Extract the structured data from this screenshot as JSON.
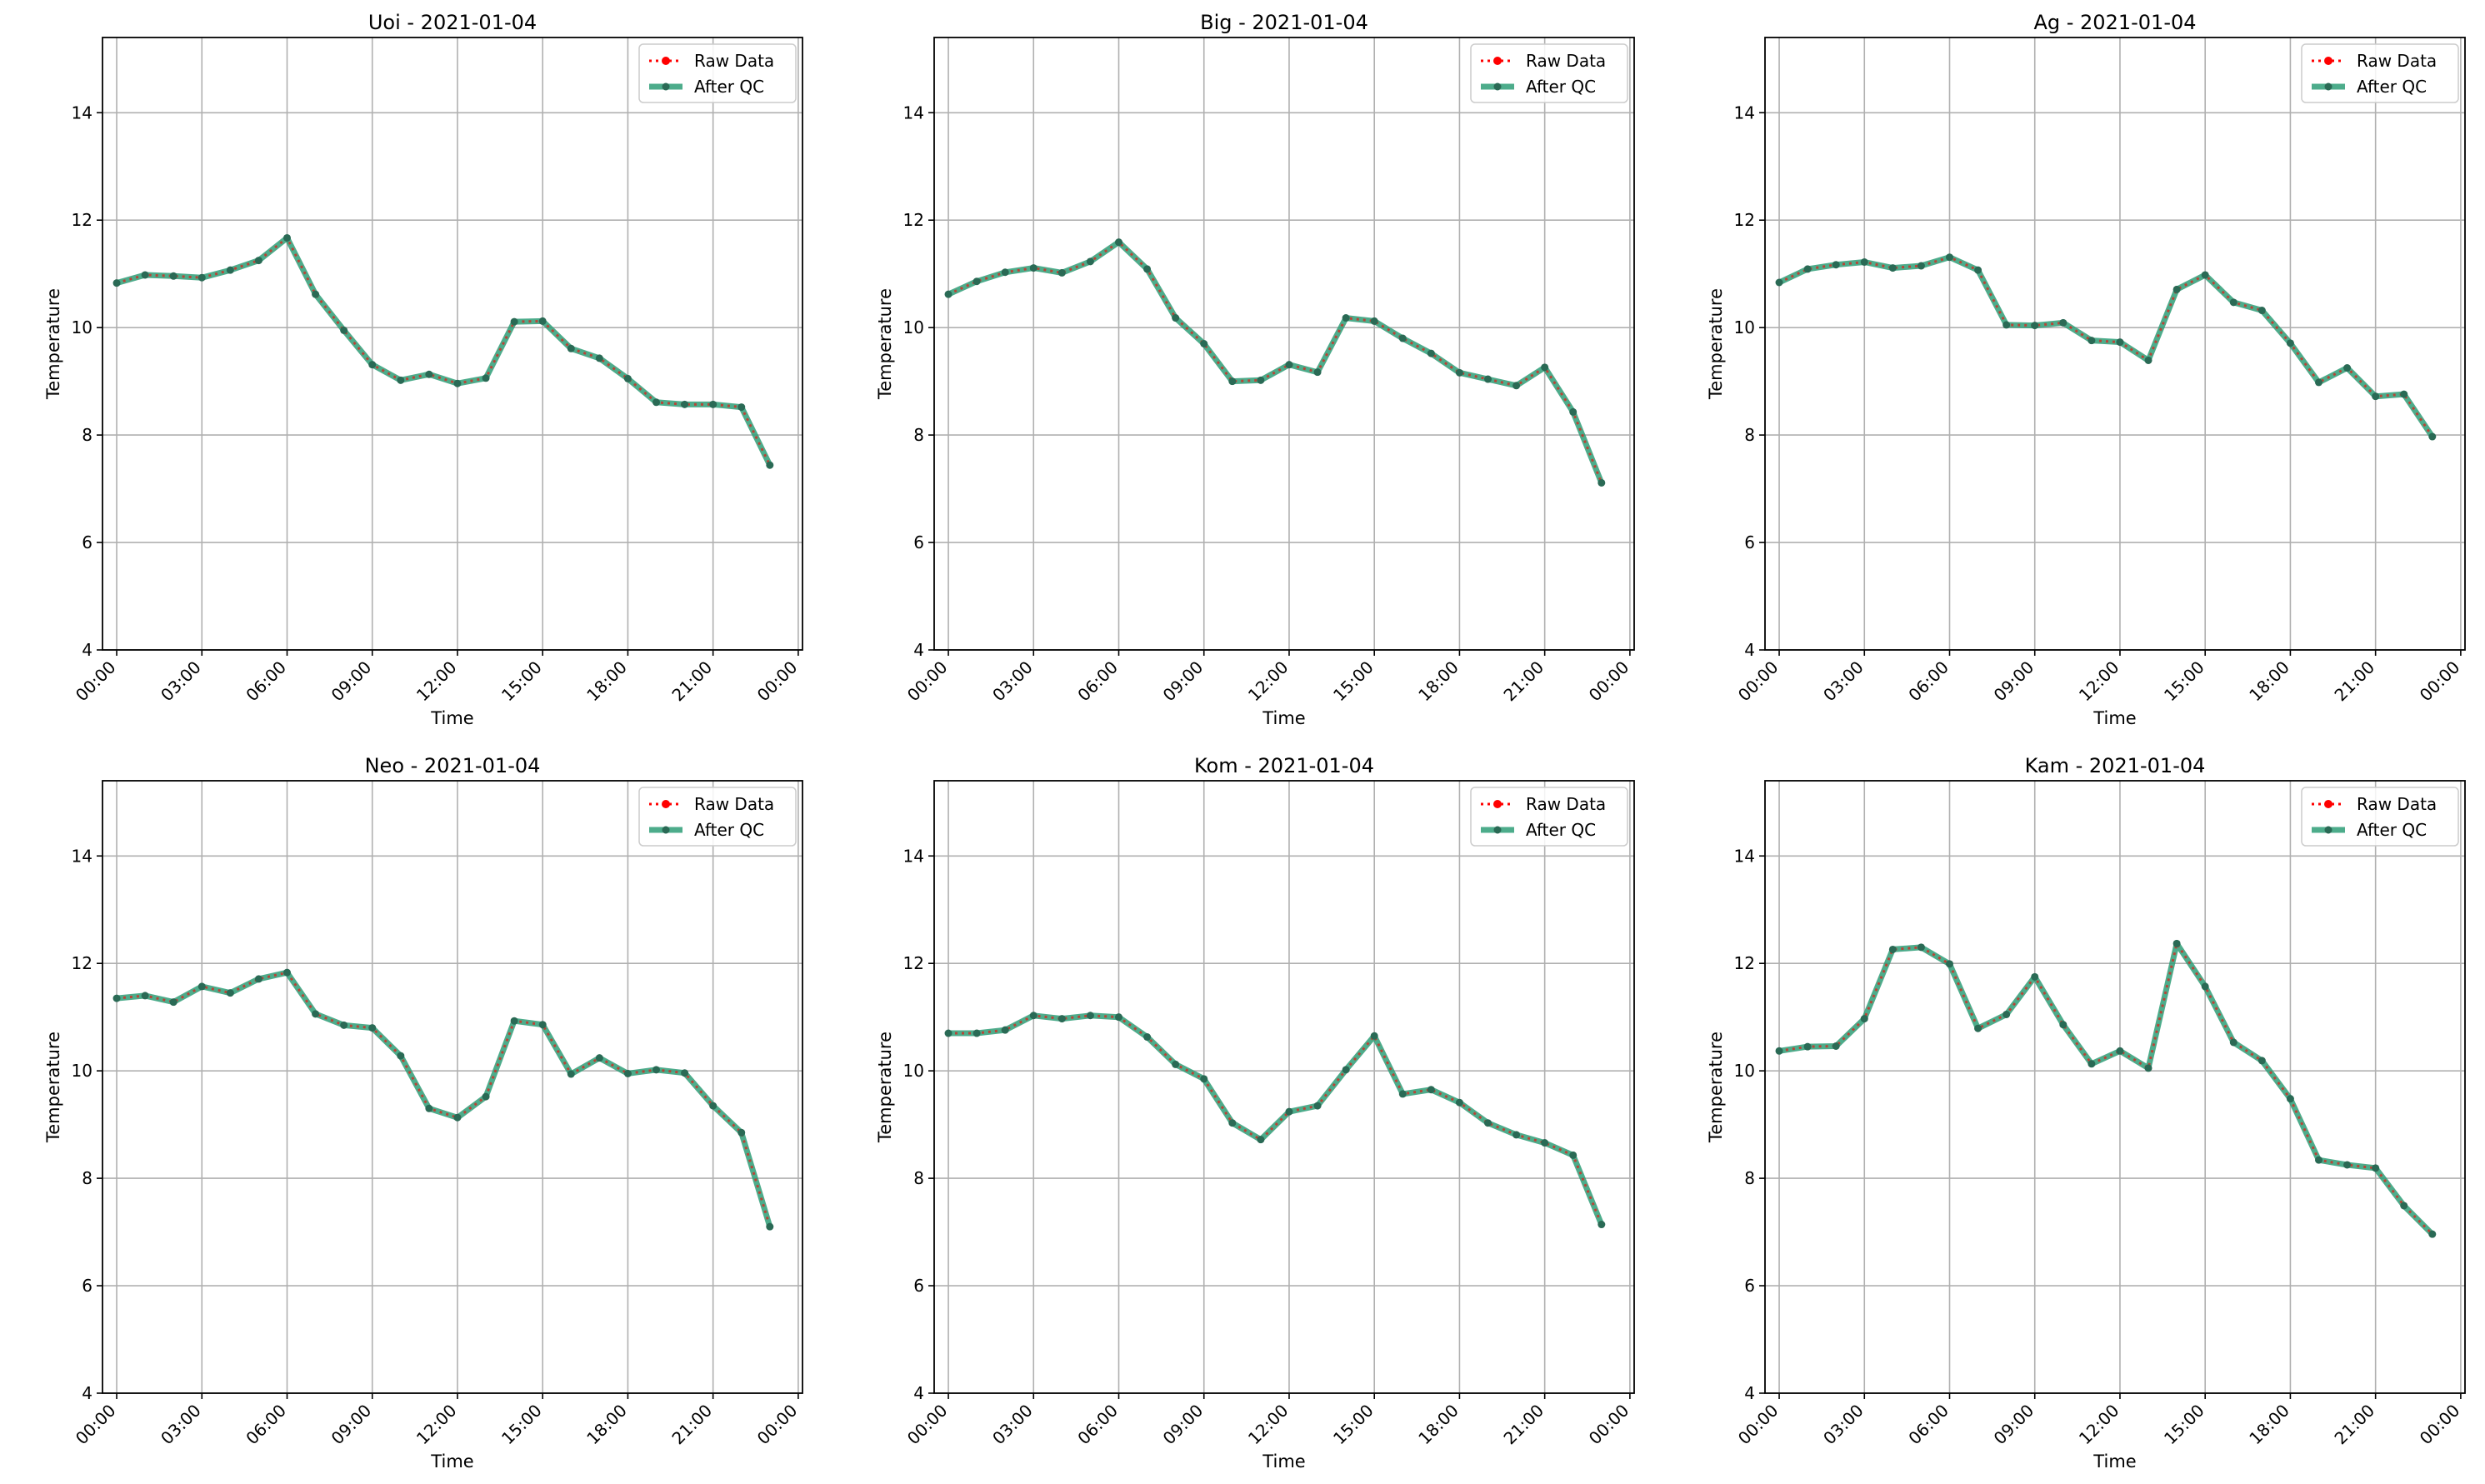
{
  "figure": {
    "subplots": [
      {
        "title": "Uoi - 2021-01-04"
      },
      {
        "title": "Big - 2021-01-04"
      },
      {
        "title": "Ag - 2021-01-04"
      },
      {
        "title": "Neo - 2021-01-04"
      },
      {
        "title": "Kom - 2021-01-04"
      },
      {
        "title": "Kam - 2021-01-04"
      }
    ]
  },
  "chart_data": [
    {
      "type": "line",
      "title": "Uoi - 2021-01-04",
      "xlabel": "Time",
      "ylabel": "Temperature",
      "x": [
        "00:00",
        "01:00",
        "02:00",
        "03:00",
        "04:00",
        "05:00",
        "06:00",
        "07:00",
        "08:00",
        "09:00",
        "10:00",
        "11:00",
        "12:00",
        "13:00",
        "14:00",
        "15:00",
        "16:00",
        "17:00",
        "18:00",
        "19:00",
        "20:00",
        "21:00",
        "22:00",
        "23:00"
      ],
      "x_ticks": [
        "00:00",
        "03:00",
        "06:00",
        "09:00",
        "12:00",
        "15:00",
        "18:00",
        "21:00",
        "00:00"
      ],
      "y_ticks": [
        4,
        6,
        8,
        10,
        12,
        14
      ],
      "ylim": [
        4,
        15.4
      ],
      "grid": true,
      "legend_position": "top-right",
      "series": [
        {
          "name": "Raw Data",
          "color": "#ff0000",
          "values": [
            10.83,
            10.98,
            10.96,
            10.93,
            11.07,
            11.25,
            11.67,
            10.62,
            9.95,
            9.31,
            9.02,
            9.13,
            8.96,
            9.06,
            10.11,
            10.12,
            9.61,
            9.43,
            9.05,
            8.61,
            8.57,
            8.57,
            8.52,
            7.44
          ]
        },
        {
          "name": "After QC",
          "color": "#2e9e77",
          "values": [
            10.83,
            10.98,
            10.96,
            10.93,
            11.07,
            11.25,
            11.67,
            10.62,
            9.95,
            9.31,
            9.02,
            9.13,
            8.96,
            9.06,
            10.11,
            10.12,
            9.61,
            9.43,
            9.05,
            8.61,
            8.57,
            8.57,
            8.52,
            7.44
          ]
        }
      ]
    },
    {
      "type": "line",
      "title": "Big - 2021-01-04",
      "xlabel": "Time",
      "ylabel": "Temperature",
      "x": [
        "00:00",
        "01:00",
        "02:00",
        "03:00",
        "04:00",
        "05:00",
        "06:00",
        "07:00",
        "08:00",
        "09:00",
        "10:00",
        "11:00",
        "12:00",
        "13:00",
        "14:00",
        "15:00",
        "16:00",
        "17:00",
        "18:00",
        "19:00",
        "20:00",
        "21:00",
        "22:00",
        "23:00"
      ],
      "x_ticks": [
        "00:00",
        "03:00",
        "06:00",
        "09:00",
        "12:00",
        "15:00",
        "18:00",
        "21:00",
        "00:00"
      ],
      "y_ticks": [
        4,
        6,
        8,
        10,
        12,
        14
      ],
      "ylim": [
        4,
        15.4
      ],
      "grid": true,
      "legend_position": "top-right",
      "series": [
        {
          "name": "Raw Data",
          "color": "#ff0000",
          "values": [
            10.62,
            10.86,
            11.03,
            11.11,
            11.02,
            11.23,
            11.59,
            11.09,
            10.18,
            9.7,
            9.0,
            9.02,
            9.31,
            9.17,
            10.18,
            10.12,
            9.8,
            9.52,
            9.16,
            9.04,
            8.92,
            9.26,
            8.43,
            7.11
          ]
        },
        {
          "name": "After QC",
          "color": "#2e9e77",
          "values": [
            10.62,
            10.86,
            11.03,
            11.11,
            11.02,
            11.23,
            11.59,
            11.09,
            10.18,
            9.7,
            9.0,
            9.02,
            9.31,
            9.17,
            10.18,
            10.12,
            9.8,
            9.52,
            9.16,
            9.04,
            8.92,
            9.26,
            8.43,
            7.11
          ]
        }
      ]
    },
    {
      "type": "line",
      "title": "Ag - 2021-01-04",
      "xlabel": "Time",
      "ylabel": "Temperature",
      "x": [
        "00:00",
        "01:00",
        "02:00",
        "03:00",
        "04:00",
        "05:00",
        "06:00",
        "07:00",
        "08:00",
        "09:00",
        "10:00",
        "11:00",
        "12:00",
        "13:00",
        "14:00",
        "15:00",
        "16:00",
        "17:00",
        "18:00",
        "19:00",
        "20:00",
        "21:00",
        "22:00",
        "23:00"
      ],
      "x_ticks": [
        "00:00",
        "03:00",
        "06:00",
        "09:00",
        "12:00",
        "15:00",
        "18:00",
        "21:00",
        "00:00"
      ],
      "y_ticks": [
        4,
        6,
        8,
        10,
        12,
        14
      ],
      "ylim": [
        4,
        15.4
      ],
      "grid": true,
      "legend_position": "top-right",
      "series": [
        {
          "name": "Raw Data",
          "color": "#ff0000",
          "values": [
            10.84,
            11.09,
            11.17,
            11.22,
            11.11,
            11.15,
            11.31,
            11.07,
            10.05,
            10.04,
            10.09,
            9.76,
            9.73,
            9.39,
            10.71,
            10.98,
            10.47,
            10.32,
            9.71,
            8.98,
            9.25,
            8.72,
            8.76,
            7.97
          ]
        },
        {
          "name": "After QC",
          "color": "#2e9e77",
          "values": [
            10.84,
            11.09,
            11.17,
            11.22,
            11.11,
            11.15,
            11.31,
            11.07,
            10.05,
            10.04,
            10.09,
            9.76,
            9.73,
            9.39,
            10.71,
            10.98,
            10.47,
            10.32,
            9.71,
            8.98,
            9.25,
            8.72,
            8.76,
            7.97
          ]
        }
      ]
    },
    {
      "type": "line",
      "title": "Neo - 2021-01-04",
      "xlabel": "Time",
      "ylabel": "Temperature",
      "x": [
        "00:00",
        "01:00",
        "02:00",
        "03:00",
        "04:00",
        "05:00",
        "06:00",
        "07:00",
        "08:00",
        "09:00",
        "10:00",
        "11:00",
        "12:00",
        "13:00",
        "14:00",
        "15:00",
        "16:00",
        "17:00",
        "18:00",
        "19:00",
        "20:00",
        "21:00",
        "22:00",
        "23:00"
      ],
      "x_ticks": [
        "00:00",
        "03:00",
        "06:00",
        "09:00",
        "12:00",
        "15:00",
        "18:00",
        "21:00",
        "00:00"
      ],
      "y_ticks": [
        4,
        6,
        8,
        10,
        12,
        14
      ],
      "ylim": [
        4,
        15.4
      ],
      "grid": true,
      "legend_position": "top-right",
      "series": [
        {
          "name": "Raw Data",
          "color": "#ff0000",
          "values": [
            11.35,
            11.4,
            11.28,
            11.57,
            11.45,
            11.71,
            11.83,
            11.06,
            10.85,
            10.8,
            10.28,
            9.3,
            9.13,
            9.52,
            10.93,
            10.86,
            9.94,
            10.24,
            9.95,
            10.02,
            9.96,
            9.35,
            8.85,
            7.1
          ]
        },
        {
          "name": "After QC",
          "color": "#2e9e77",
          "values": [
            11.35,
            11.4,
            11.28,
            11.57,
            11.45,
            11.71,
            11.83,
            11.06,
            10.85,
            10.8,
            10.28,
            9.3,
            9.13,
            9.52,
            10.93,
            10.86,
            9.94,
            10.24,
            9.95,
            10.02,
            9.96,
            9.35,
            8.85,
            7.1
          ]
        }
      ]
    },
    {
      "type": "line",
      "title": "Kom - 2021-01-04",
      "xlabel": "Time",
      "ylabel": "Temperature",
      "x": [
        "00:00",
        "01:00",
        "02:00",
        "03:00",
        "04:00",
        "05:00",
        "06:00",
        "07:00",
        "08:00",
        "09:00",
        "10:00",
        "11:00",
        "12:00",
        "13:00",
        "14:00",
        "15:00",
        "16:00",
        "17:00",
        "18:00",
        "19:00",
        "20:00",
        "21:00",
        "22:00",
        "23:00"
      ],
      "x_ticks": [
        "00:00",
        "03:00",
        "06:00",
        "09:00",
        "12:00",
        "15:00",
        "18:00",
        "21:00",
        "00:00"
      ],
      "y_ticks": [
        4,
        6,
        8,
        10,
        12,
        14
      ],
      "ylim": [
        4,
        15.4
      ],
      "grid": true,
      "legend_position": "top-right",
      "series": [
        {
          "name": "Raw Data",
          "color": "#ff0000",
          "values": [
            10.7,
            10.7,
            10.76,
            11.03,
            10.97,
            11.03,
            11.0,
            10.63,
            10.12,
            9.85,
            9.03,
            8.72,
            9.24,
            9.35,
            10.02,
            10.65,
            9.57,
            9.65,
            9.41,
            9.03,
            8.81,
            8.66,
            8.43,
            7.14
          ]
        },
        {
          "name": "After QC",
          "color": "#2e9e77",
          "values": [
            10.7,
            10.7,
            10.76,
            11.03,
            10.97,
            11.03,
            11.0,
            10.63,
            10.12,
            9.85,
            9.03,
            8.72,
            9.24,
            9.35,
            10.02,
            10.65,
            9.57,
            9.65,
            9.41,
            9.03,
            8.81,
            8.66,
            8.43,
            7.14
          ]
        }
      ]
    },
    {
      "type": "line",
      "title": "Kam - 2021-01-04",
      "xlabel": "Time",
      "ylabel": "Temperature",
      "x": [
        "00:00",
        "01:00",
        "02:00",
        "03:00",
        "04:00",
        "05:00",
        "06:00",
        "07:00",
        "08:00",
        "09:00",
        "10:00",
        "11:00",
        "12:00",
        "13:00",
        "14:00",
        "15:00",
        "16:00",
        "17:00",
        "18:00",
        "19:00",
        "20:00",
        "21:00",
        "22:00",
        "23:00"
      ],
      "x_ticks": [
        "00:00",
        "03:00",
        "06:00",
        "09:00",
        "12:00",
        "15:00",
        "18:00",
        "21:00",
        "00:00"
      ],
      "y_ticks": [
        4,
        6,
        8,
        10,
        12,
        14
      ],
      "ylim": [
        4,
        15.4
      ],
      "grid": true,
      "legend_position": "top-right",
      "series": [
        {
          "name": "Raw Data",
          "color": "#ff0000",
          "values": [
            10.37,
            10.45,
            10.46,
            10.97,
            12.26,
            12.3,
            11.99,
            10.79,
            11.05,
            11.75,
            10.86,
            10.13,
            10.37,
            10.05,
            12.37,
            11.57,
            10.53,
            10.19,
            9.48,
            8.34,
            8.25,
            8.19,
            7.49,
            6.96
          ]
        },
        {
          "name": "After QC",
          "color": "#2e9e77",
          "values": [
            10.37,
            10.45,
            10.46,
            10.97,
            12.26,
            12.3,
            11.99,
            10.79,
            11.05,
            11.75,
            10.86,
            10.13,
            10.37,
            10.05,
            12.37,
            11.57,
            10.53,
            10.19,
            9.48,
            8.34,
            8.25,
            8.19,
            7.49,
            6.96
          ]
        }
      ]
    }
  ]
}
